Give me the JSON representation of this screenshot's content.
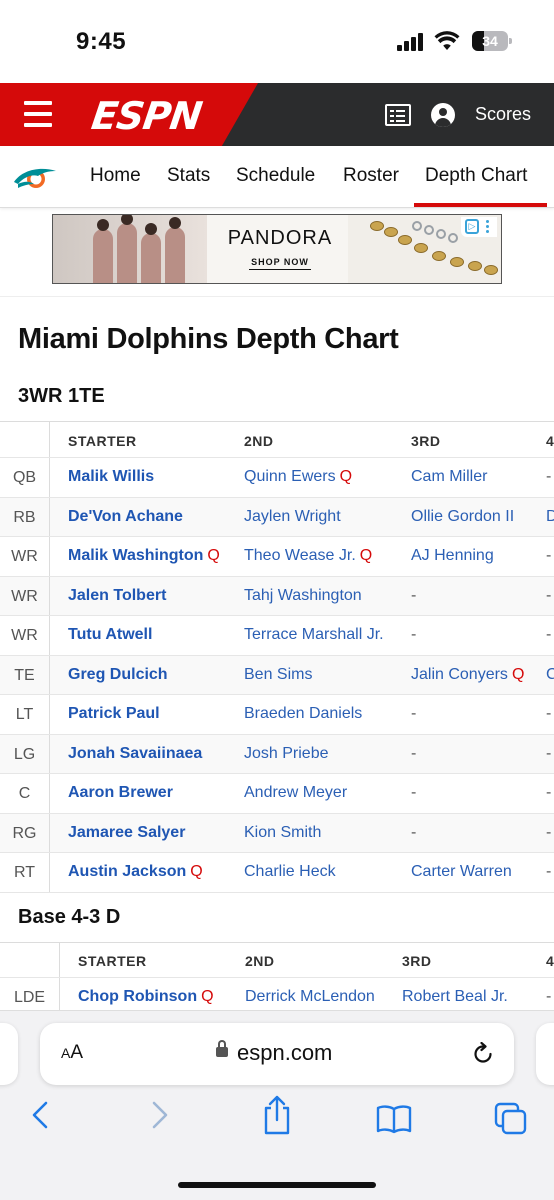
{
  "status_bar": {
    "time": "9:45",
    "battery_level": "34",
    "battery_fraction": 0.34
  },
  "header": {
    "logo_text": "ESPN",
    "scores_label": "Scores"
  },
  "team_nav": {
    "team_logo_icon": "dolphins-logo",
    "items": [
      {
        "label": "Home"
      },
      {
        "label": "Stats"
      },
      {
        "label": "Schedule"
      },
      {
        "label": "Roster"
      },
      {
        "label": "Depth Chart",
        "active": true
      }
    ]
  },
  "ad": {
    "brand": "PANDORA",
    "cta": "SHOP NOW"
  },
  "page": {
    "title": "Miami Dolphins Depth Chart"
  },
  "offense": {
    "title": "3WR 1TE",
    "headers": [
      "STARTER",
      "2ND",
      "3RD",
      "4"
    ],
    "rows": [
      {
        "pos": "QB",
        "starter": "Malik Willis",
        "starter_q": "",
        "second": "Quinn Ewers",
        "second_q": "Q",
        "third": "Cam Miller",
        "third_q": "",
        "fourth": "-"
      },
      {
        "pos": "RB",
        "starter": "De'Von Achane",
        "starter_q": "",
        "second": "Jaylen Wright",
        "second_q": "",
        "third": "Ollie Gordon II",
        "third_q": "",
        "fourth": "D"
      },
      {
        "pos": "WR",
        "starter": "Malik Washington",
        "starter_q": "Q",
        "second": "Theo Wease Jr.",
        "second_q": "Q",
        "third": "AJ Henning",
        "third_q": "",
        "fourth": "-"
      },
      {
        "pos": "WR",
        "starter": "Jalen Tolbert",
        "starter_q": "",
        "second": "Tahj Washington",
        "second_q": "",
        "third": "-",
        "third_q": "",
        "fourth": "-"
      },
      {
        "pos": "WR",
        "starter": "Tutu Atwell",
        "starter_q": "",
        "second": "Terrace Marshall Jr.",
        "second_q": "",
        "third": "-",
        "third_q": "",
        "fourth": "-"
      },
      {
        "pos": "TE",
        "starter": "Greg Dulcich",
        "starter_q": "",
        "second": "Ben Sims",
        "second_q": "",
        "third": "Jalin Conyers",
        "third_q": "Q",
        "fourth": "C"
      },
      {
        "pos": "LT",
        "starter": "Patrick Paul",
        "starter_q": "",
        "second": "Braeden Daniels",
        "second_q": "",
        "third": "-",
        "third_q": "",
        "fourth": "-"
      },
      {
        "pos": "LG",
        "starter": "Jonah Savaiinaea",
        "starter_q": "",
        "second": "Josh Priebe",
        "second_q": "",
        "third": "-",
        "third_q": "",
        "fourth": "-"
      },
      {
        "pos": "C",
        "starter": "Aaron Brewer",
        "starter_q": "",
        "second": "Andrew Meyer",
        "second_q": "",
        "third": "-",
        "third_q": "",
        "fourth": "-"
      },
      {
        "pos": "RG",
        "starter": "Jamaree Salyer",
        "starter_q": "",
        "second": "Kion Smith",
        "second_q": "",
        "third": "-",
        "third_q": "",
        "fourth": "-"
      },
      {
        "pos": "RT",
        "starter": "Austin Jackson",
        "starter_q": "Q",
        "second": "Charlie Heck",
        "second_q": "",
        "third": "Carter Warren",
        "third_q": "",
        "fourth": "-"
      }
    ]
  },
  "defense": {
    "title": "Base 4-3 D",
    "headers": [
      "STARTER",
      "2ND",
      "3RD",
      "4"
    ],
    "rows": [
      {
        "pos": "LDE",
        "starter": "Chop Robinson",
        "starter_q": "Q",
        "second": "Derrick McLendon",
        "second_q": "",
        "third": "Robert Beal Jr.",
        "third_q": "",
        "fourth": "-"
      }
    ]
  },
  "safari": {
    "aa_label_small": "A",
    "aa_label_big": "A",
    "url": "espn.com"
  },
  "colors": {
    "espn_red": "#d50a0a",
    "header_dark": "#2b2c2d",
    "link_blue": "#2b5fb4",
    "questionable_red": "#d50a0a",
    "ios_blue": "#1f7ae6"
  }
}
